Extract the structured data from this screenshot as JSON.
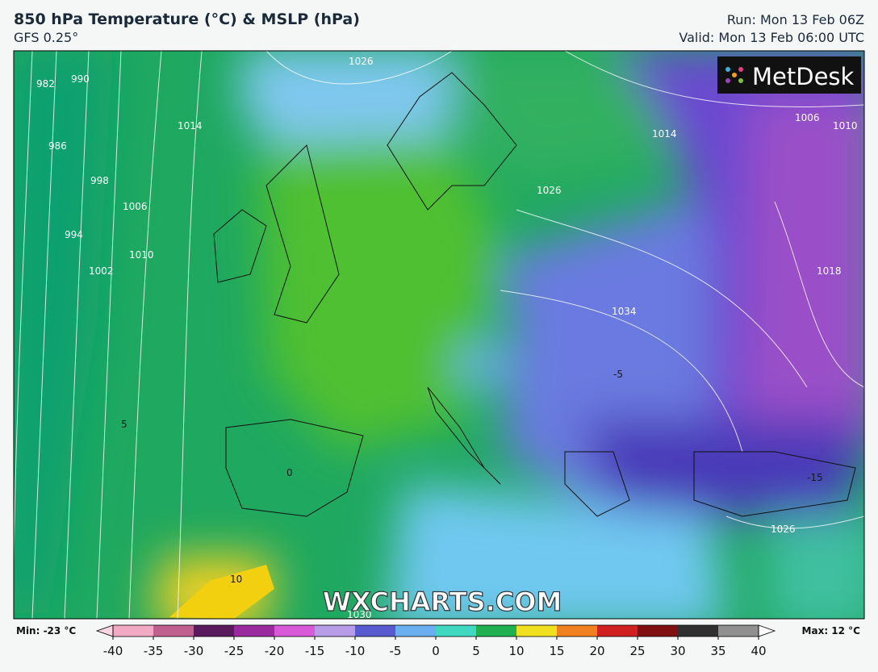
{
  "header": {
    "title": "850 hPa Temperature (°C) & MSLP (hPa)",
    "model": "GFS 0.25°",
    "run": "Run: Mon 13 Feb 06Z",
    "valid": "Valid: Mon 13 Feb 06:00 UTC"
  },
  "logo": "MetDesk",
  "watermark": "WXCHARTS.COM",
  "map_labels": [
    "982",
    "990",
    "986",
    "998",
    "1006",
    "1010",
    "1002",
    "994",
    "1014",
    "1026",
    "1026",
    "1014",
    "1006",
    "1010",
    "1018",
    "1034",
    "1026",
    "1030",
    "10",
    "5",
    "0",
    "-5",
    "-15"
  ],
  "colorbar": {
    "min_label": "Min: -23 °C",
    "max_label": "Max: 12 °C",
    "lim": [
      -40,
      40
    ],
    "ticks": [
      -40,
      -35,
      -30,
      -25,
      -20,
      -15,
      -10,
      -5,
      0,
      5,
      10,
      15,
      20,
      25,
      30,
      35,
      40
    ],
    "colors": [
      "#f2a9c4",
      "#c0608e",
      "#5a1a5e",
      "#9a2a9e",
      "#d85ad8",
      "#b79ce8",
      "#5a5ad0",
      "#6ab0f0",
      "#40d8c0",
      "#20b050",
      "#f0e020",
      "#f08020",
      "#d02020",
      "#801010",
      "#303030",
      "#909090"
    ],
    "end_colors": [
      "#f9d4e2",
      "#ffffff"
    ]
  }
}
